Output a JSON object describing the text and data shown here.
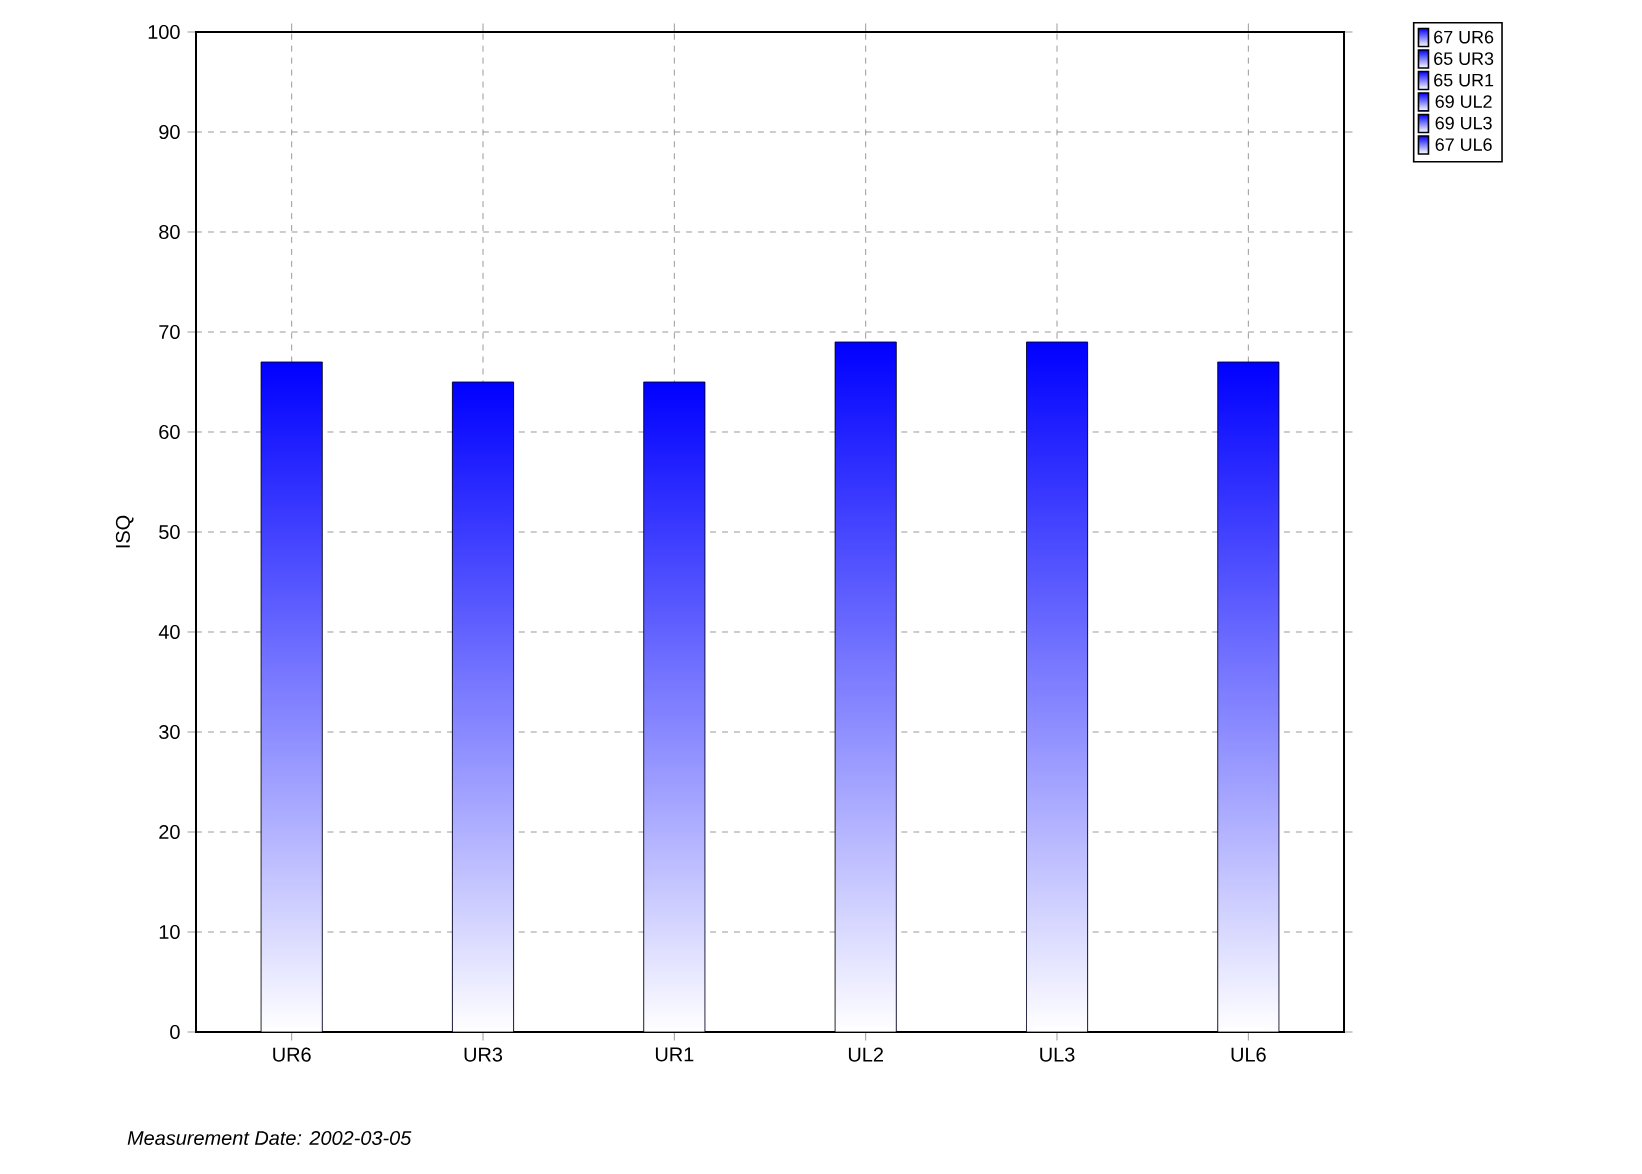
{
  "chart_data": {
    "type": "bar",
    "categories": [
      "UR6",
      "UR3",
      "UR1",
      "UL2",
      "UL3",
      "UL6"
    ],
    "series": [
      {
        "name": "67 UR6",
        "color": "#0000ff",
        "values": [
          67,
          null,
          null,
          null,
          null,
          null
        ]
      },
      {
        "name": "65 UR3",
        "color": "#0000ff",
        "values": [
          null,
          65,
          null,
          null,
          null,
          null
        ]
      },
      {
        "name": "65 UR1",
        "color": "#0000ff",
        "values": [
          null,
          null,
          65,
          null,
          null,
          null
        ]
      },
      {
        "name": "69 UL2",
        "color": "#0000ff",
        "values": [
          null,
          null,
          null,
          69,
          null,
          null
        ]
      },
      {
        "name": "69 UL3",
        "color": "#0000ff",
        "values": [
          null,
          null,
          null,
          null,
          69,
          null
        ]
      },
      {
        "name": "67 UL6",
        "color": "#0000ff",
        "values": [
          null,
          null,
          null,
          null,
          null,
          67
        ]
      }
    ],
    "ylabel": "ISQ",
    "ylim": [
      0,
      100
    ],
    "yticks": [
      0,
      10,
      20,
      30,
      40,
      50,
      60,
      70,
      80,
      90,
      100
    ],
    "grid": true,
    "legend": "top right",
    "annotations": [
      "*Measurement Date: 2002-03-05*"
    ]
  }
}
